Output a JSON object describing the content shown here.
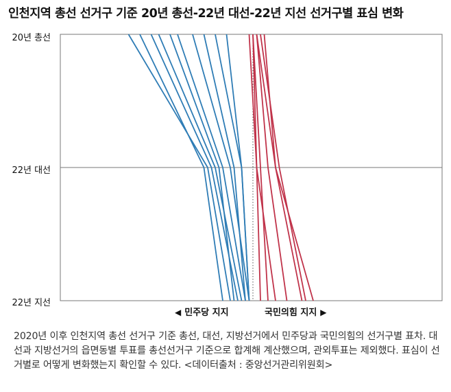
{
  "title": "인천지역 총선 선거구 기준 20년 총선-22년 대선-22년 지선 선거구별 표심 변화",
  "rows": [
    "20년 총선",
    "22년 대선",
    "22년 지선"
  ],
  "direction": {
    "left_label": "민주당 지지",
    "left_arrow": "◀",
    "right_label": "국민의힘 지지",
    "right_arrow": "▶"
  },
  "caption": "2020년 이후 인천지역 총선 선거구 기준 총선, 대선, 지방선거에서 민주당과 국민의힘의 선거구별 표차. 대선과 지방선거의 읍면동별 투표를 총선선거구 기준으로 합계해 계산했으며, 관외투표는 제외했다. 표심이 선거별로 어떻게 변화했는지 확인할 수 있다. <데이터출처 : 중앙선거관리위원회>",
  "colors": {
    "democratic": "#2e7cb5",
    "ppp": "#c0334a",
    "grid": "#777777",
    "center": "#555555"
  },
  "chart_data": {
    "type": "line",
    "x": [
      "20년 총선",
      "22년 대선",
      "22년 지선"
    ],
    "orientation": "horizontal-slope",
    "value_axis": "margin (negative = 민주당, positive = 국민의힘)",
    "xlim": [
      -100,
      100
    ],
    "center_line": 0,
    "series": [
      {
        "party": "democratic",
        "values": [
          -33,
          -12,
          -6
        ]
      },
      {
        "party": "democratic",
        "values": [
          -30,
          -13,
          -8
        ]
      },
      {
        "party": "democratic",
        "values": [
          -27,
          -11,
          -4
        ]
      },
      {
        "party": "democratic",
        "values": [
          -25,
          -10,
          -3
        ]
      },
      {
        "party": "democratic",
        "values": [
          -22,
          -9,
          -5
        ]
      },
      {
        "party": "democratic",
        "values": [
          -20,
          -8,
          -2
        ]
      },
      {
        "party": "democratic",
        "values": [
          -16,
          -6,
          -1
        ]
      },
      {
        "party": "democratic",
        "values": [
          -13,
          -5,
          -2
        ]
      },
      {
        "party": "democratic",
        "values": [
          -10,
          -3,
          -1
        ]
      },
      {
        "party": "democratic",
        "values": [
          -7,
          -3,
          -1
        ]
      },
      {
        "party": "ppp",
        "values": [
          -1,
          1,
          2
        ]
      },
      {
        "party": "ppp",
        "values": [
          0,
          2,
          4
        ]
      },
      {
        "party": "ppp",
        "values": [
          0,
          1,
          6
        ]
      },
      {
        "party": "ppp",
        "values": [
          1,
          4,
          9
        ]
      },
      {
        "page_note": null,
        "party": "ppp",
        "values": [
          1,
          6,
          13
        ]
      },
      {
        "party": "ppp",
        "values": [
          2,
          7,
          14
        ]
      },
      {
        "party": "ppp",
        "values": [
          3,
          6,
          16
        ]
      }
    ]
  }
}
